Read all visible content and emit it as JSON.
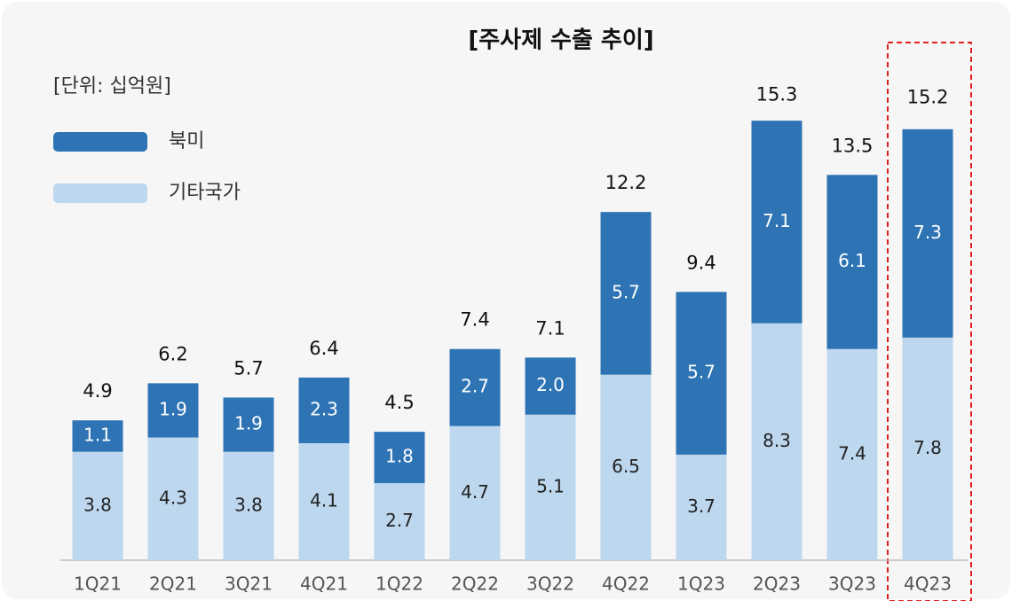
{
  "chart_data": {
    "type": "stacked_bar",
    "title": "[주사제 수출 추이]",
    "subtitle": "[단위: 십억원]",
    "categories": [
      "1Q21",
      "2Q21",
      "3Q21",
      "4Q21",
      "1Q22",
      "2Q22",
      "3Q22",
      "4Q22",
      "1Q23",
      "2Q23",
      "3Q23",
      "4Q23"
    ],
    "series": [
      {
        "name": "기타국가",
        "color": "#bdd7ee",
        "values": [
          3.8,
          4.3,
          3.8,
          4.1,
          2.7,
          4.7,
          5.1,
          6.5,
          3.7,
          8.3,
          7.4,
          7.8
        ],
        "value_labels": [
          "3.8",
          "4.3",
          "3.8",
          "4.1",
          "2.7",
          "4.7",
          "5.1",
          "6.5",
          "3.7",
          "8.3",
          "7.4",
          "7.8"
        ]
      },
      {
        "name": "북미",
        "color": "#2e74b5",
        "values": [
          1.1,
          1.9,
          1.9,
          2.3,
          1.8,
          2.7,
          2.0,
          5.7,
          5.7,
          7.1,
          6.1,
          7.3
        ],
        "value_labels": [
          "1.1",
          "1.9",
          "1.9",
          "2.3",
          "1.8",
          "2.7",
          "2.0",
          "5.7",
          "5.7",
          "7.1",
          "6.1",
          "7.3"
        ]
      }
    ],
    "totals": [
      4.9,
      6.2,
      5.7,
      6.4,
      4.5,
      7.4,
      7.1,
      12.2,
      9.4,
      15.3,
      13.5,
      15.2
    ]
  }
}
